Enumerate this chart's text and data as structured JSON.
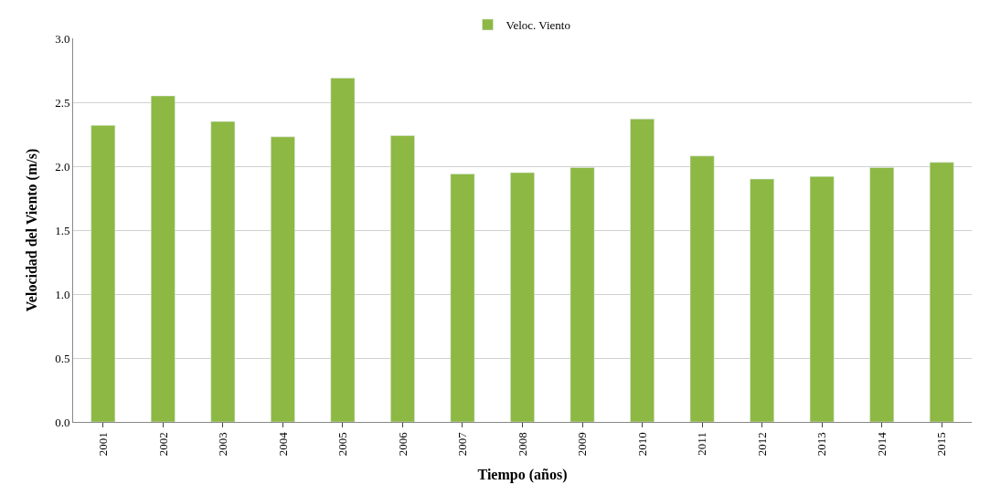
{
  "chart_data": {
    "type": "bar",
    "xlabel": "Tiempo (años)",
    "ylabel": "Velocidad del Viento (m/s)",
    "categories": [
      "2001",
      "2002",
      "2003",
      "2004",
      "2005",
      "2006",
      "2007",
      "2008",
      "2009",
      "2010",
      "2011",
      "2012",
      "2013",
      "2014",
      "2015"
    ],
    "series": [
      {
        "name": "Veloc. Viento",
        "color": "#8db843",
        "values": [
          2.32,
          2.55,
          2.35,
          2.23,
          2.69,
          2.24,
          1.94,
          1.95,
          1.99,
          2.37,
          2.08,
          1.9,
          1.92,
          1.99,
          2.03
        ]
      }
    ],
    "ylim": [
      0,
      3
    ],
    "yticks": [
      {
        "value": 0,
        "label": "0.0"
      },
      {
        "value": 0.5,
        "label": "0.5"
      },
      {
        "value": 1,
        "label": "1.0"
      },
      {
        "value": 1.5,
        "label": "1.5"
      },
      {
        "value": 2,
        "label": "2.0"
      },
      {
        "value": 2.5,
        "label": "2.5"
      },
      {
        "value": 3,
        "label": "3.0"
      }
    ],
    "grid": "y",
    "legend": "top"
  }
}
